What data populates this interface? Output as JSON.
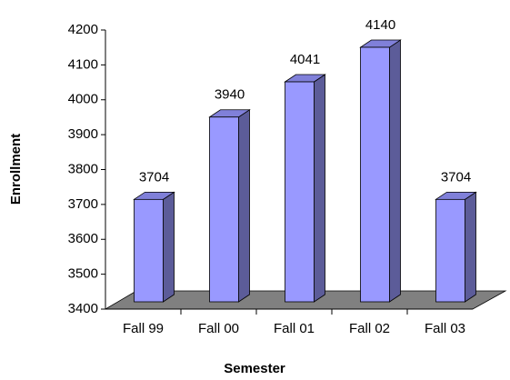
{
  "chart_data": {
    "type": "bar3d",
    "x_label": "Semester",
    "y_label": "Enrollment",
    "categories": [
      "Fall 99",
      "Fall 00",
      "Fall 01",
      "Fall 02",
      "Fall 03"
    ],
    "values": [
      3704,
      3940,
      4041,
      4140,
      3704
    ],
    "color": "#9999ff",
    "ylim": [
      3400,
      4200
    ],
    "yticks": [
      3400,
      3500,
      3600,
      3700,
      3800,
      3900,
      4000,
      4100,
      4200
    ]
  }
}
